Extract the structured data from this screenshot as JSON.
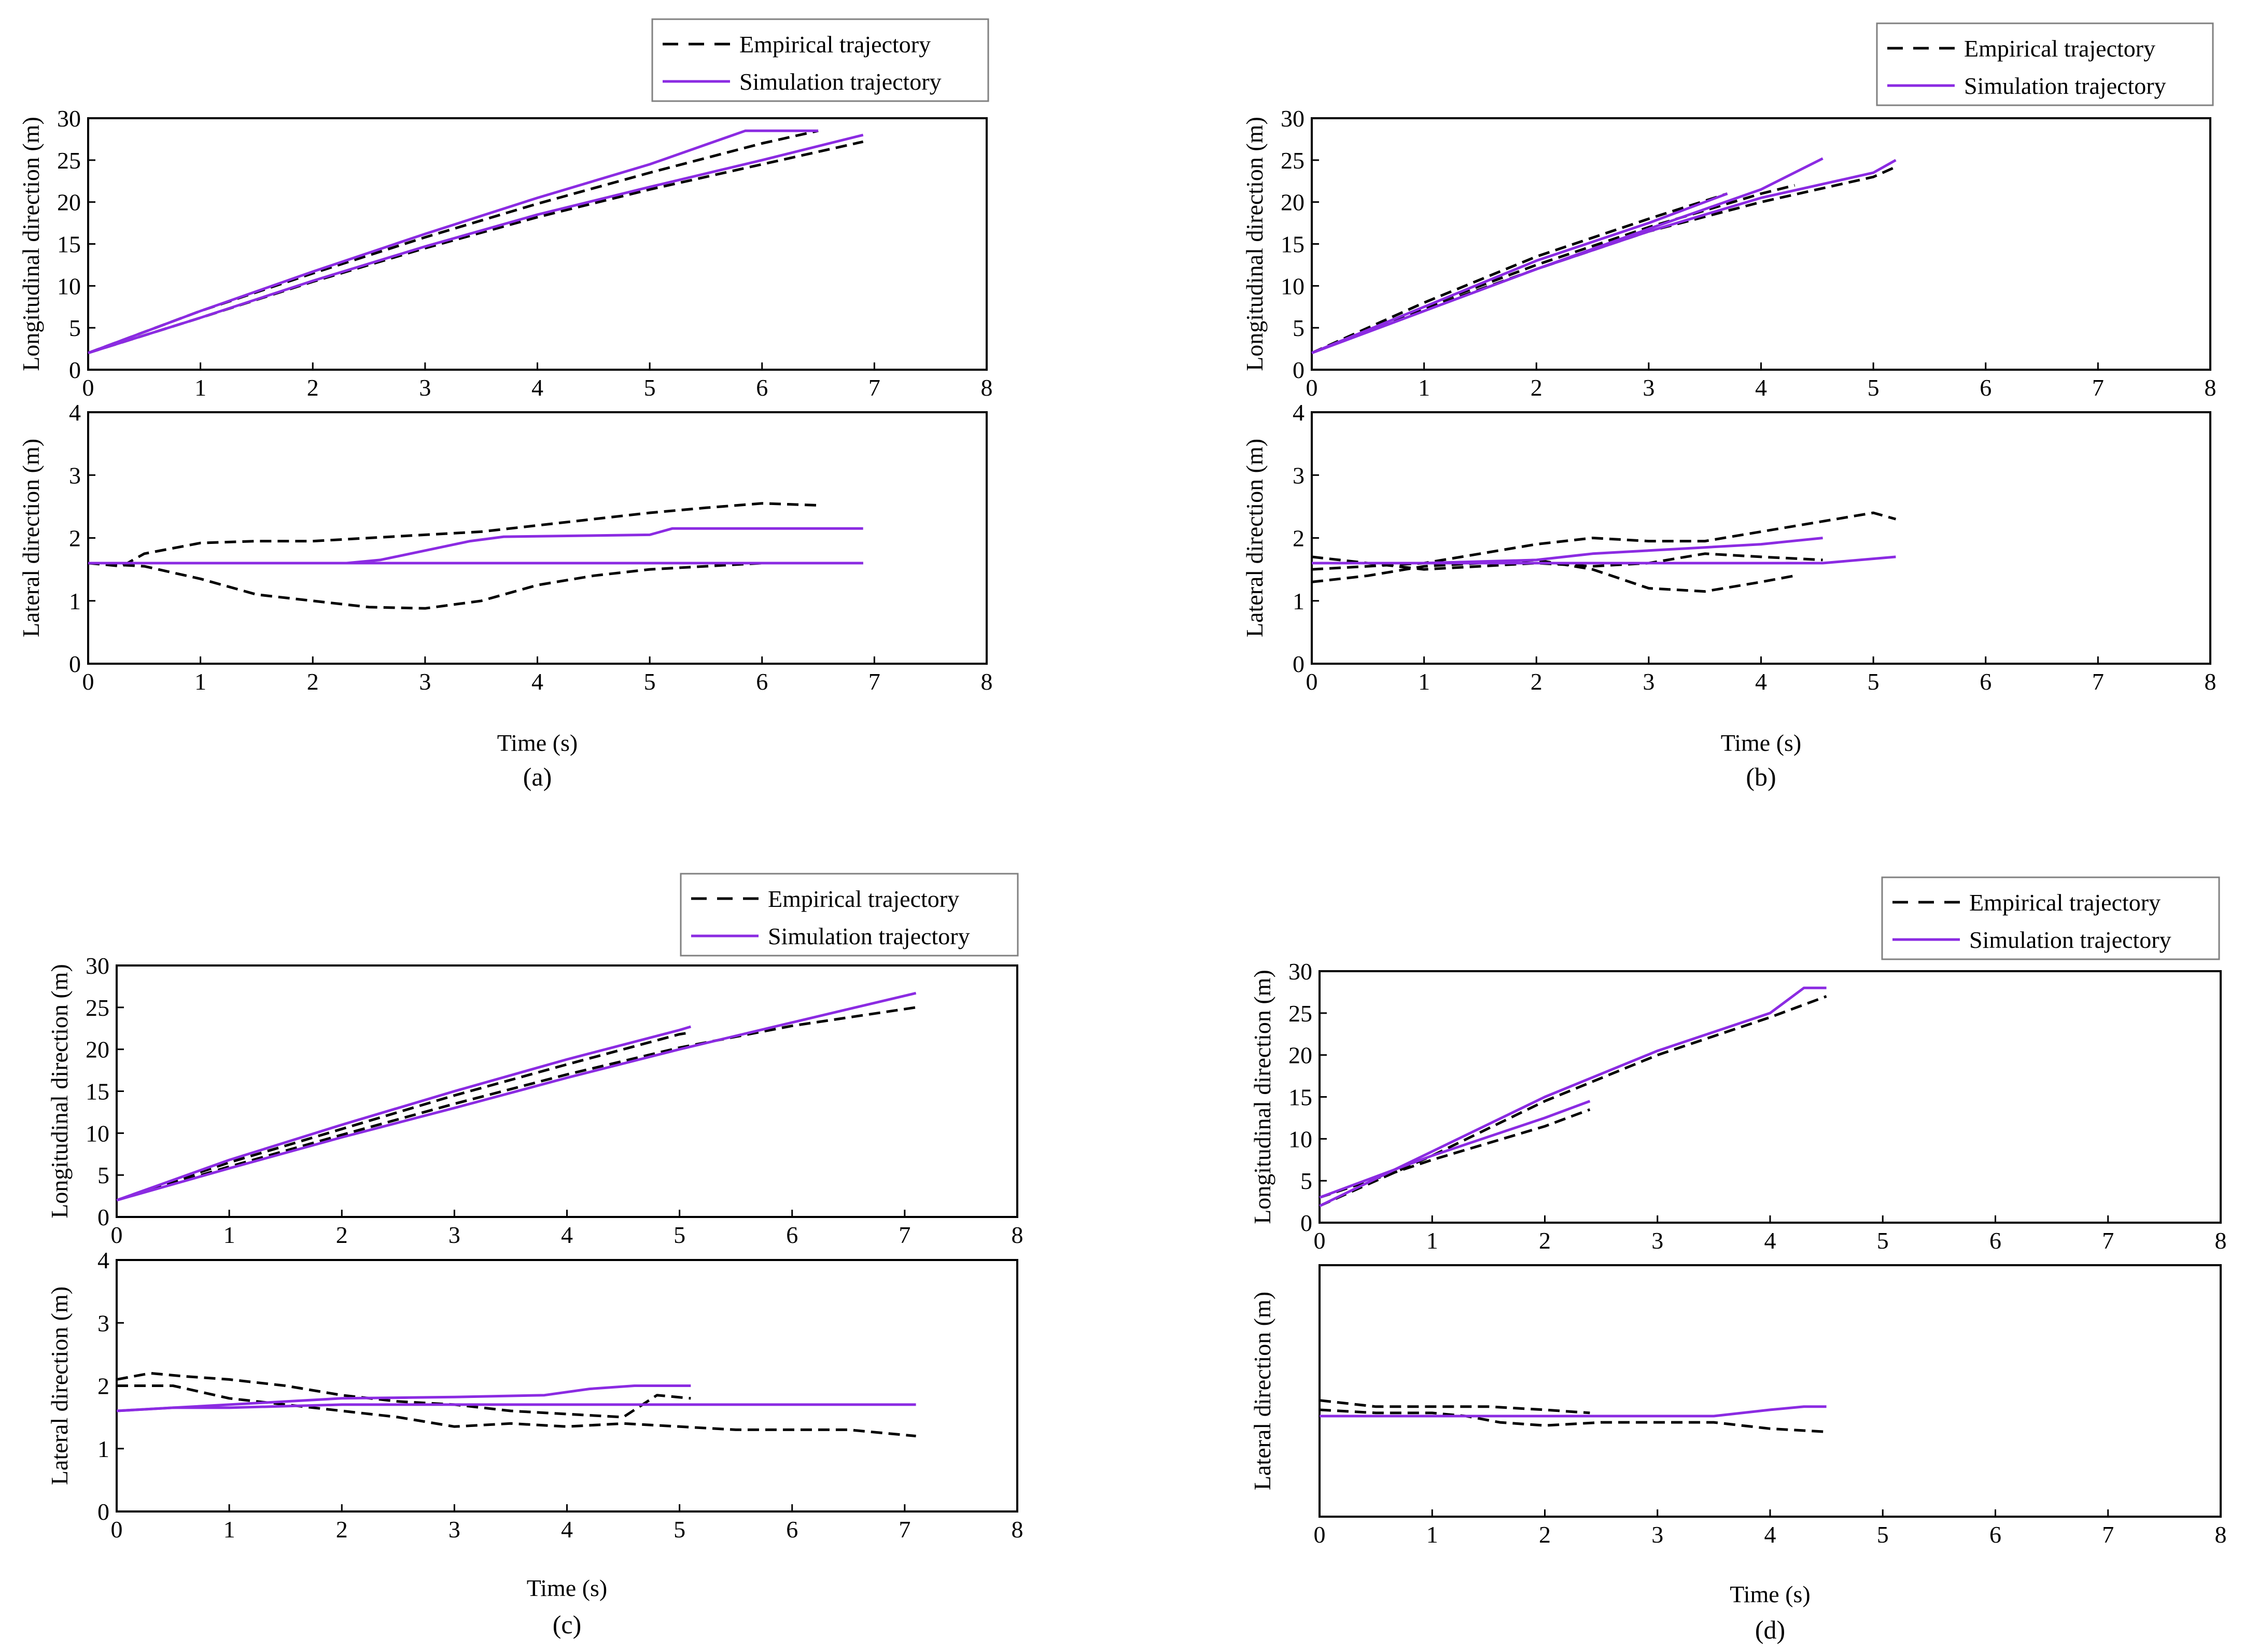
{
  "legend": {
    "empirical": "Empirical trajectory",
    "simulation": "Simulation trajectory"
  },
  "colors": {
    "empirical": "#000000",
    "simulation": "#8b2be2",
    "axis": "#000000"
  },
  "chart_data": [
    {
      "type": "line",
      "panel_label": "(a)",
      "xlabel": "Time (s)",
      "xlim": [
        0,
        8
      ],
      "xticks": [
        "0",
        "1",
        "2",
        "3",
        "4",
        "5",
        "6",
        "7",
        "8"
      ],
      "longitudinal": {
        "ylabel": "Longitudinal direction (m)",
        "ylim": [
          0,
          30
        ],
        "yticks": [
          "0",
          "5",
          "10",
          "15",
          "20",
          "25",
          "30"
        ],
        "series": [
          {
            "name": "Empirical trajectory",
            "style": "empirical",
            "x": [
              0,
              1,
              2,
              3,
              4,
              5,
              6,
              6.5
            ],
            "y": [
              2,
              7,
              11.5,
              15.8,
              19.8,
              23.5,
              27,
              28.5
            ]
          },
          {
            "name": "Empirical trajectory",
            "style": "empirical",
            "x": [
              0,
              1,
              2,
              3,
              4,
              5,
              6,
              6.9
            ],
            "y": [
              2,
              6.2,
              10.5,
              14.5,
              18.2,
              21.5,
              24.5,
              27.2
            ]
          },
          {
            "name": "Simulation trajectory",
            "style": "simulation",
            "x": [
              0,
              1,
              2,
              3,
              4,
              5,
              5.85,
              6.5
            ],
            "y": [
              2,
              7,
              11.7,
              16.2,
              20.5,
              24.5,
              28.5,
              28.5
            ]
          },
          {
            "name": "Simulation trajectory",
            "style": "simulation",
            "x": [
              0,
              1,
              2,
              3,
              4,
              5,
              6,
              6.9
            ],
            "y": [
              2,
              6.2,
              10.6,
              14.7,
              18.5,
              21.8,
              25,
              28
            ]
          }
        ]
      },
      "lateral": {
        "ylabel": "Lateral direction (m)",
        "ylim": [
          0,
          4
        ],
        "yticks": [
          "0",
          "1",
          "2",
          "3",
          "4"
        ],
        "series": [
          {
            "name": "Empirical trajectory",
            "style": "empirical",
            "x": [
              0,
              0.3,
              0.5,
              1,
              1.5,
              2,
              2.5,
              3,
              3.5,
              4,
              4.5,
              5,
              5.5,
              6,
              6.5
            ],
            "y": [
              1.6,
              1.55,
              1.75,
              1.92,
              1.95,
              1.95,
              2.0,
              2.05,
              2.1,
              2.2,
              2.3,
              2.4,
              2.48,
              2.55,
              2.52
            ]
          },
          {
            "name": "Empirical trajectory",
            "style": "empirical",
            "x": [
              0,
              0.5,
              1,
              1.5,
              2,
              2.5,
              3,
              3.5,
              4,
              4.5,
              5,
              5.5,
              6,
              6.5,
              6.9
            ],
            "y": [
              1.6,
              1.55,
              1.35,
              1.1,
              1.0,
              0.9,
              0.88,
              1.0,
              1.25,
              1.4,
              1.5,
              1.55,
              1.6,
              1.6,
              1.6
            ]
          },
          {
            "name": "Simulation trajectory",
            "style": "simulation",
            "x": [
              0,
              2.3,
              2.6,
              3,
              3.4,
              3.7,
              5,
              5.2,
              6.9
            ],
            "y": [
              1.6,
              1.6,
              1.65,
              1.8,
              1.95,
              2.02,
              2.05,
              2.15,
              2.15
            ]
          },
          {
            "name": "Simulation trajectory",
            "style": "simulation",
            "x": [
              0,
              6.9
            ],
            "y": [
              1.6,
              1.6
            ]
          }
        ]
      }
    },
    {
      "type": "line",
      "panel_label": "(b)",
      "xlabel": "Time (s)",
      "xlim": [
        0,
        8
      ],
      "xticks": [
        "0",
        "1",
        "2",
        "3",
        "4",
        "5",
        "6",
        "7",
        "8"
      ],
      "longitudinal": {
        "ylabel": "Longitudinal direction (m)",
        "ylim": [
          0,
          30
        ],
        "yticks": [
          "0",
          "5",
          "10",
          "15",
          "20",
          "25",
          "30"
        ],
        "series": [
          {
            "name": "Empirical trajectory",
            "style": "empirical",
            "x": [
              0,
              1,
              2,
              3,
              3.7
            ],
            "y": [
              2,
              8,
              13.5,
              18,
              21
            ]
          },
          {
            "name": "Empirical trajectory",
            "style": "empirical",
            "x": [
              0,
              1,
              2,
              3,
              4,
              4.3
            ],
            "y": [
              2,
              7.5,
              12.5,
              17,
              21,
              22
            ]
          },
          {
            "name": "Empirical trajectory",
            "style": "empirical",
            "x": [
              0,
              1,
              2,
              3,
              4,
              5,
              5.2
            ],
            "y": [
              2,
              7.2,
              12,
              16.5,
              20,
              23,
              24.2
            ]
          },
          {
            "name": "Simulation trajectory",
            "style": "simulation",
            "x": [
              0,
              1,
              2,
              3,
              3.7
            ],
            "y": [
              2,
              7.5,
              13,
              17.5,
              21
            ]
          },
          {
            "name": "Simulation trajectory",
            "style": "simulation",
            "x": [
              0,
              1,
              2,
              3,
              4,
              4.55
            ],
            "y": [
              2,
              7,
              12,
              16.8,
              21.5,
              25.2
            ]
          },
          {
            "name": "Simulation trajectory",
            "style": "simulation",
            "x": [
              0,
              1,
              2,
              3,
              4,
              5,
              5.2
            ],
            "y": [
              2,
              7,
              12,
              16.5,
              20.5,
              23.5,
              25
            ]
          }
        ]
      },
      "lateral": {
        "ylabel": "Lateral direction (m)",
        "ylim": [
          0,
          4
        ],
        "yticks": [
          "0",
          "1",
          "2",
          "3",
          "4"
        ],
        "series": [
          {
            "name": "Empirical trajectory",
            "style": "empirical",
            "x": [
              0,
              0.5,
              1,
              1.5,
              2,
              2.5,
              3,
              3.5,
              4,
              4.5,
              5,
              5.2
            ],
            "y": [
              1.5,
              1.55,
              1.6,
              1.75,
              1.9,
              2.0,
              1.95,
              1.95,
              2.1,
              2.25,
              2.4,
              2.3
            ]
          },
          {
            "name": "Empirical trajectory",
            "style": "empirical",
            "x": [
              0,
              0.5,
              1,
              1.5,
              2,
              2.5,
              3,
              3.5,
              4,
              4.3
            ],
            "y": [
              1.3,
              1.4,
              1.55,
              1.6,
              1.65,
              1.5,
              1.2,
              1.15,
              1.3,
              1.4
            ]
          },
          {
            "name": "Empirical trajectory",
            "style": "empirical",
            "x": [
              0,
              0.5,
              1,
              1.5,
              2,
              2.5,
              3,
              3.5,
              4,
              4.55
            ],
            "y": [
              1.7,
              1.6,
              1.5,
              1.55,
              1.6,
              1.55,
              1.6,
              1.75,
              1.7,
              1.65
            ]
          },
          {
            "name": "Simulation trajectory",
            "style": "simulation",
            "x": [
              0,
              1,
              2,
              2.5,
              3,
              3.5,
              4,
              4.55
            ],
            "y": [
              1.6,
              1.6,
              1.65,
              1.75,
              1.8,
              1.85,
              1.9,
              2.0
            ]
          },
          {
            "name": "Simulation trajectory",
            "style": "simulation",
            "x": [
              0,
              1,
              2,
              3,
              4,
              4.55,
              5.2
            ],
            "y": [
              1.6,
              1.6,
              1.6,
              1.6,
              1.6,
              1.6,
              1.7
            ]
          }
        ]
      }
    },
    {
      "type": "line",
      "panel_label": "(c)",
      "xlabel": "Time (s)",
      "xlim": [
        0,
        8
      ],
      "xticks": [
        "0",
        "1",
        "2",
        "3",
        "4",
        "5",
        "6",
        "7",
        "8"
      ],
      "longitudinal": {
        "ylabel": "Longitudinal direction (m)",
        "ylim": [
          0,
          30
        ],
        "yticks": [
          "0",
          "5",
          "10",
          "15",
          "20",
          "25",
          "30"
        ],
        "series": [
          {
            "name": "Empirical trajectory",
            "style": "empirical",
            "x": [
              0,
              1,
              2,
              3,
              4,
              5,
              5.1
            ],
            "y": [
              2,
              6.5,
              10.5,
              14.5,
              18.2,
              21.8,
              22
            ]
          },
          {
            "name": "Empirical trajectory",
            "style": "empirical",
            "x": [
              0,
              1,
              2,
              3,
              4,
              5,
              6,
              7.1
            ],
            "y": [
              2,
              6,
              9.8,
              13.5,
              17,
              20.2,
              22.8,
              25
            ]
          },
          {
            "name": "Simulation trajectory",
            "style": "simulation",
            "x": [
              0,
              1,
              2,
              3,
              4,
              5,
              5.1
            ],
            "y": [
              2,
              6.8,
              11,
              15,
              18.8,
              22.3,
              22.7
            ]
          },
          {
            "name": "Simulation trajectory",
            "style": "simulation",
            "x": [
              0,
              1,
              2,
              3,
              4,
              5,
              6,
              7.1
            ],
            "y": [
              2,
              5.8,
              9.5,
              13,
              16.6,
              20,
              23.2,
              26.7
            ]
          }
        ]
      },
      "lateral": {
        "ylabel": "Lateral direction (m)",
        "ylim": [
          0,
          4
        ],
        "yticks": [
          "0",
          "1",
          "2",
          "3",
          "4"
        ],
        "series": [
          {
            "name": "Empirical trajectory",
            "style": "empirical",
            "x": [
              0,
              0.3,
              0.6,
              1,
              1.5,
              2,
              2.5,
              3,
              3.5,
              4,
              4.5,
              4.8,
              5.1
            ],
            "y": [
              2.1,
              2.2,
              2.15,
              2.1,
              2.0,
              1.85,
              1.75,
              1.7,
              1.6,
              1.55,
              1.5,
              1.85,
              1.8
            ]
          },
          {
            "name": "Empirical trajectory",
            "style": "empirical",
            "x": [
              0,
              0.5,
              1,
              1.5,
              2,
              2.5,
              3,
              3.5,
              4,
              4.5,
              5,
              5.5,
              6,
              6.5,
              7.1
            ],
            "y": [
              2.0,
              2.0,
              1.8,
              1.7,
              1.6,
              1.5,
              1.35,
              1.4,
              1.35,
              1.4,
              1.35,
              1.3,
              1.3,
              1.3,
              1.2
            ]
          },
          {
            "name": "Simulation trajectory",
            "style": "simulation",
            "x": [
              0,
              0.5,
              1,
              2,
              3,
              3.8,
              4.2,
              4.6,
              5.1
            ],
            "y": [
              1.6,
              1.65,
              1.7,
              1.8,
              1.82,
              1.85,
              1.95,
              2.0,
              2.0
            ]
          },
          {
            "name": "Simulation trajectory",
            "style": "simulation",
            "x": [
              0,
              0.5,
              1,
              2,
              3,
              4,
              5,
              6,
              7.1
            ],
            "y": [
              1.6,
              1.65,
              1.65,
              1.7,
              1.7,
              1.7,
              1.7,
              1.7,
              1.7
            ]
          }
        ]
      }
    },
    {
      "type": "line",
      "panel_label": "(d)",
      "xlabel": "Time (s)",
      "xlim": [
        0,
        8
      ],
      "xticks": [
        "0",
        "1",
        "2",
        "3",
        "4",
        "5",
        "6",
        "7",
        "8"
      ],
      "longitudinal": {
        "ylabel": "Longitudinal direction (m)",
        "ylim": [
          0,
          30
        ],
        "yticks": [
          "0",
          "5",
          "10",
          "15",
          "20",
          "25",
          "30"
        ],
        "series": [
          {
            "name": "Empirical trajectory",
            "style": "empirical",
            "x": [
              0,
              1,
              2,
              3,
              4,
              4.5
            ],
            "y": [
              2,
              8,
              14.5,
              20,
              24.5,
              27
            ]
          },
          {
            "name": "Empirical trajectory",
            "style": "empirical",
            "x": [
              0,
              1,
              2,
              2.4
            ],
            "y": [
              3,
              7.5,
              11.5,
              13.5
            ]
          },
          {
            "name": "Simulation trajectory",
            "style": "simulation",
            "x": [
              0,
              1,
              2,
              3,
              4,
              4.3,
              4.5
            ],
            "y": [
              2,
              8.5,
              15,
              20.5,
              25,
              28,
              28
            ]
          },
          {
            "name": "Simulation trajectory",
            "style": "simulation",
            "x": [
              0,
              1,
              2,
              2.4
            ],
            "y": [
              3,
              8,
              12.5,
              14.5
            ]
          }
        ]
      },
      "lateral": {
        "ylabel": "Lateral direction (m)",
        "ylim": [
          0,
          4
        ],
        "yticks": [],
        "series": [
          {
            "name": "Empirical trajectory",
            "style": "empirical",
            "x": [
              0,
              0.5,
              1,
              1.5,
              2,
              2.4
            ],
            "y": [
              1.85,
              1.75,
              1.75,
              1.75,
              1.7,
              1.65
            ]
          },
          {
            "name": "Empirical trajectory",
            "style": "empirical",
            "x": [
              0,
              0.5,
              1,
              1.3,
              1.6,
              2,
              2.5,
              3,
              3.5,
              4,
              4.5
            ],
            "y": [
              1.7,
              1.65,
              1.65,
              1.6,
              1.5,
              1.45,
              1.5,
              1.5,
              1.5,
              1.4,
              1.35
            ]
          },
          {
            "name": "Simulation trajectory",
            "style": "simulation",
            "x": [
              0,
              1,
              2,
              3,
              3.5,
              4,
              4.3,
              4.5
            ],
            "y": [
              1.6,
              1.6,
              1.6,
              1.6,
              1.6,
              1.7,
              1.75,
              1.75
            ]
          }
        ]
      }
    }
  ]
}
